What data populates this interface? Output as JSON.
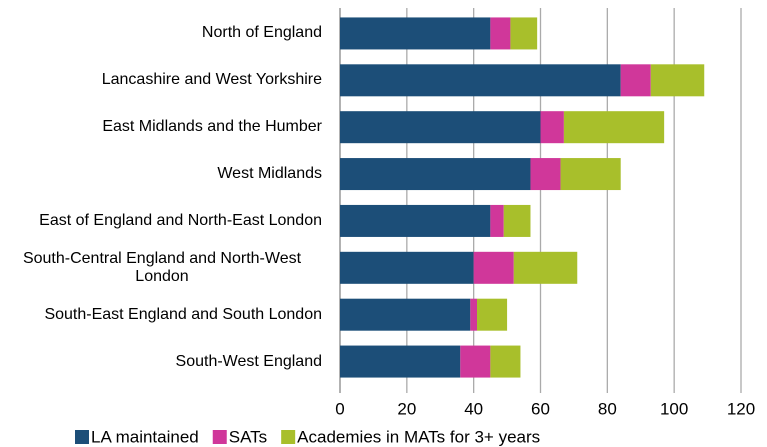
{
  "chart_data": {
    "type": "bar",
    "orientation": "horizontal",
    "stacked": true,
    "categories": [
      "North of England",
      "Lancashire and West Yorkshire",
      "East Midlands and the Humber",
      "West Midlands",
      "East of England and North-East London",
      "South-Central England and North-West London",
      "South-East England and South London",
      "South-West England"
    ],
    "series": [
      {
        "name": "LA maintained",
        "color": "#1c4e78",
        "values": [
          45,
          84,
          60,
          57,
          45,
          40,
          39,
          36
        ]
      },
      {
        "name": "SATs",
        "color": "#d0379a",
        "values": [
          6,
          9,
          7,
          9,
          4,
          12,
          2,
          9
        ]
      },
      {
        "name": "Academies in MATs for 3+ years",
        "color": "#a8bf2b",
        "values": [
          8,
          16,
          30,
          18,
          8,
          19,
          9,
          9
        ]
      }
    ],
    "xlim": [
      0,
      120
    ],
    "xticks": [
      0,
      20,
      40,
      60,
      80,
      100,
      120
    ],
    "grid": true,
    "legend": "bottom"
  }
}
